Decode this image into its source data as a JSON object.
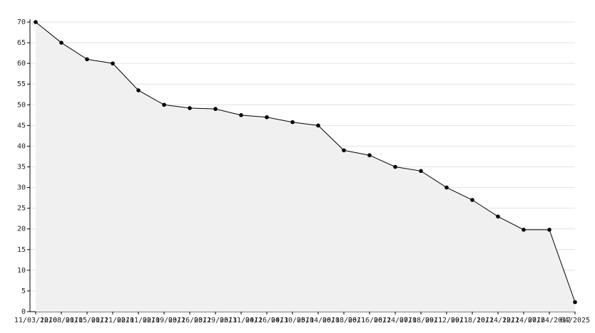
{
  "chart_data": {
    "type": "area",
    "categories": [
      "11/03/2010",
      "12/08/2010",
      "01/15/2011",
      "01/21/2011",
      "02/01/2011",
      "02/09/2011",
      "03/26/2011",
      "03/29/2011",
      "03/31/2011",
      "04/26/2011",
      "04/30/2011",
      "05/04/2011",
      "06/08/2011",
      "06/16/2011",
      "06/24/2011",
      "07/08/2011",
      "09/12/2011",
      "09/18/2011",
      "10/24/2011",
      "12/24/2016",
      "07/24/2017",
      "04/2025"
    ],
    "values": [
      70,
      65,
      61,
      60,
      53.5,
      50,
      49.2,
      49,
      47.5,
      47,
      45.8,
      45,
      39,
      37.8,
      35,
      34,
      30,
      27,
      23,
      19.8,
      19.8,
      2.3
    ],
    "color": "#000000",
    "fill": "#f0f0f0",
    "ylim": [
      0,
      70
    ],
    "yticks": [
      0,
      5,
      10,
      15,
      20,
      25,
      30,
      35,
      40,
      45,
      50,
      55,
      60,
      65,
      70
    ],
    "grid": true
  }
}
